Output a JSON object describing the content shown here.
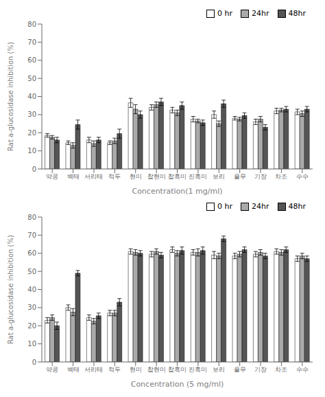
{
  "chart_data": [
    {
      "type": "bar",
      "xlabel": "Concentration(1 mg/ml)",
      "ylabel": "Rat a-glucosidase inhibition (%)",
      "categories": [
        "약콩",
        "백태",
        "서리태",
        "적두",
        "현미",
        "찹현미",
        "찹흑미",
        "진흑미",
        "보리",
        "율무",
        "기장",
        "차조",
        "수수"
      ],
      "ylim": [
        0,
        80
      ],
      "yticks": [
        0,
        10,
        20,
        30,
        40,
        50,
        60,
        70,
        80
      ],
      "grid": false,
      "legend": "upper right",
      "series": [
        {
          "name": "0 hr",
          "color": "#ffffff",
          "values": [
            18.5,
            14.5,
            16.0,
            14.5,
            36.5,
            34.0,
            32.5,
            27.5,
            30.0,
            28.0,
            26.0,
            32.0,
            31.5
          ],
          "errors": [
            1.0,
            1.0,
            1.5,
            1.0,
            2.5,
            1.5,
            1.5,
            1.5,
            2.0,
            1.0,
            1.5,
            1.5,
            1.5
          ]
        },
        {
          "name": "24hr",
          "color": "#aaaaaa",
          "values": [
            17.5,
            13.0,
            14.0,
            15.5,
            33.0,
            35.5,
            31.0,
            26.5,
            25.0,
            27.5,
            27.5,
            32.5,
            30.5
          ],
          "errors": [
            1.0,
            1.5,
            1.5,
            1.5,
            2.5,
            1.5,
            1.5,
            1.0,
            1.5,
            1.0,
            1.5,
            1.0,
            1.5
          ]
        },
        {
          "name": "48hr",
          "color": "#555555",
          "values": [
            16.0,
            24.5,
            16.0,
            19.5,
            30.0,
            37.0,
            35.0,
            25.5,
            36.0,
            29.5,
            23.0,
            33.0,
            33.0
          ],
          "errors": [
            1.5,
            2.5,
            1.5,
            2.5,
            2.0,
            2.0,
            2.0,
            1.5,
            2.0,
            1.5,
            1.5,
            1.5,
            1.5
          ]
        }
      ]
    },
    {
      "type": "bar",
      "xlabel": "Concentration (5 mg/ml)",
      "ylabel": "Rat a-glucosidase inhibition (%)",
      "categories": [
        "약콩",
        "백태",
        "서리태",
        "적두",
        "현미",
        "찹현미",
        "찹흑미",
        "진흑미",
        "보리",
        "율무",
        "기장",
        "차조",
        "수수"
      ],
      "ylim": [
        0,
        80
      ],
      "yticks": [
        0,
        10,
        20,
        30,
        40,
        50,
        60,
        70,
        80
      ],
      "grid": false,
      "legend": "upper right",
      "series": [
        {
          "name": "0 hr",
          "color": "#ffffff",
          "values": [
            23.0,
            30.0,
            24.5,
            27.0,
            61.0,
            59.5,
            62.0,
            60.5,
            59.0,
            58.5,
            59.5,
            61.0,
            57.0
          ],
          "errors": [
            1.5,
            1.5,
            1.5,
            1.5,
            1.5,
            1.5,
            1.5,
            1.5,
            2.0,
            1.5,
            1.5,
            1.5,
            1.5
          ]
        },
        {
          "name": "24hr",
          "color": "#aaaaaa",
          "values": [
            24.5,
            27.5,
            22.5,
            27.0,
            60.5,
            61.0,
            60.0,
            60.5,
            58.5,
            59.5,
            60.5,
            60.5,
            58.5
          ],
          "errors": [
            1.5,
            2.0,
            1.5,
            1.5,
            1.5,
            1.5,
            1.5,
            2.0,
            1.5,
            1.5,
            1.5,
            1.5,
            1.5
          ]
        },
        {
          "name": "48hr",
          "color": "#555555",
          "values": [
            20.0,
            49.0,
            25.5,
            33.0,
            60.0,
            59.0,
            61.5,
            61.5,
            68.0,
            62.0,
            58.5,
            62.0,
            57.0
          ],
          "errors": [
            2.0,
            1.5,
            1.5,
            2.0,
            1.5,
            1.5,
            2.0,
            2.0,
            1.5,
            1.5,
            1.5,
            1.5,
            1.5
          ]
        }
      ]
    }
  ]
}
